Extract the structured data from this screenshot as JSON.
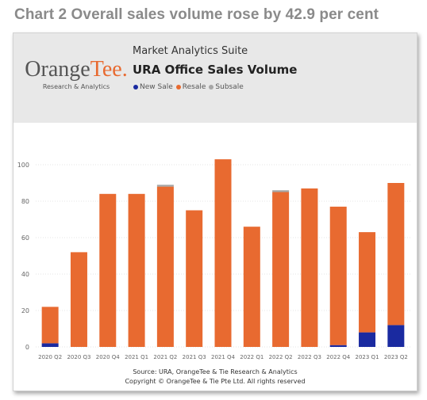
{
  "heading": "Chart 2 Overall sales volume rose by 42.9 per cent",
  "report": {
    "brand_main": "Orange",
    "brand_accent": "Tee.",
    "brand_sub": "Research & Analytics",
    "suite": "Market Analytics Suite",
    "title": "URA Office Sales Volume"
  },
  "source_line": "Source: URA, OrangeTee & Tie Research & Analytics",
  "copyright_line": "Copyright © OrangeTee & Tie Pte Ltd. All rights reserved",
  "chart_data": {
    "type": "bar",
    "stacked": true,
    "title": "URA Office Sales Volume",
    "xlabel": "",
    "ylabel": "",
    "ylim": [
      0,
      110
    ],
    "yticks": [
      0,
      20,
      40,
      60,
      80,
      100
    ],
    "grid": true,
    "legend_position": "top-left",
    "categories": [
      "2020 Q2",
      "2020 Q3",
      "2020 Q4",
      "2021 Q1",
      "2021 Q2",
      "2021 Q3",
      "2021 Q4",
      "2022 Q1",
      "2022 Q2",
      "2022 Q3",
      "2022 Q4",
      "2023 Q1",
      "2023 Q2"
    ],
    "series": [
      {
        "name": "New Sale",
        "color": "#1a2aa0",
        "values": [
          2,
          0,
          0,
          0,
          0,
          0,
          0,
          0,
          0,
          0,
          1,
          8,
          12
        ]
      },
      {
        "name": "Resale",
        "color": "#e86a30",
        "values": [
          20,
          52,
          84,
          84,
          88,
          75,
          103,
          66,
          85,
          87,
          76,
          55,
          78
        ]
      },
      {
        "name": "Subsale",
        "color": "#a6a6a6",
        "values": [
          0,
          0,
          0,
          0,
          1,
          0,
          0,
          0,
          1,
          0,
          0,
          0,
          0
        ]
      }
    ]
  }
}
